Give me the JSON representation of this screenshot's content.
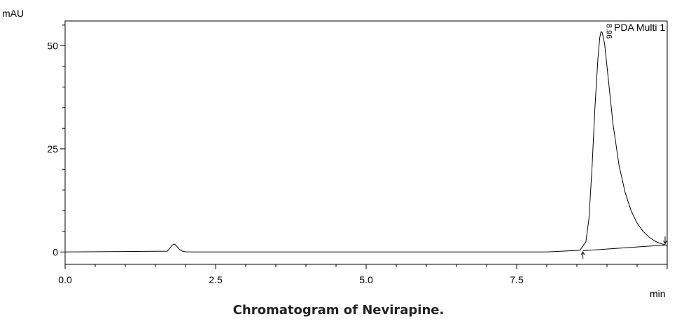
{
  "caption": "Chromatogram of Nevirapine.",
  "chart_data": {
    "type": "line",
    "xlabel": "min",
    "ylabel": "mAU",
    "xlim": [
      0,
      10
    ],
    "ylim": [
      -3,
      56
    ],
    "x_ticks": [
      0,
      2.5,
      5,
      7.5
    ],
    "x_tick_labels": [
      "0.0",
      "2.5",
      "5.0",
      "7.5"
    ],
    "y_ticks": [
      0,
      25,
      50
    ],
    "y_tick_labels": [
      "0",
      "25",
      "50"
    ],
    "legend": "PDA Multi 1",
    "legend_position": "top-right",
    "peak_label": "8.96",
    "baseline_segment": {
      "x": [
        8.6,
        10.0
      ],
      "y": [
        0.3,
        1.7
      ]
    },
    "integration_markers": [
      {
        "x": 8.6,
        "label": "start"
      },
      {
        "x": 10.0,
        "label": "end"
      }
    ],
    "series": [
      {
        "x": [
          0.0,
          1.7,
          1.74,
          1.78,
          1.82,
          1.86,
          1.9,
          1.95,
          2.0,
          2.1,
          8.0,
          8.55,
          8.65,
          8.7,
          8.75,
          8.8,
          8.85,
          8.88,
          8.9,
          8.92,
          8.96,
          9.0,
          9.05,
          9.1,
          9.2,
          9.3,
          9.4,
          9.5,
          9.6,
          9.7,
          9.8,
          9.9,
          10.0
        ],
        "y": [
          0.0,
          0.2,
          0.9,
          1.7,
          1.9,
          1.3,
          0.6,
          0.2,
          0.05,
          0.0,
          0.0,
          0.4,
          2.5,
          8.0,
          20.0,
          35.0,
          47.0,
          52.0,
          53.4,
          53.2,
          50.5,
          45.0,
          38.0,
          31.0,
          21.0,
          14.5,
          10.0,
          7.0,
          5.0,
          3.6,
          2.6,
          2.0,
          1.6
        ]
      }
    ]
  }
}
